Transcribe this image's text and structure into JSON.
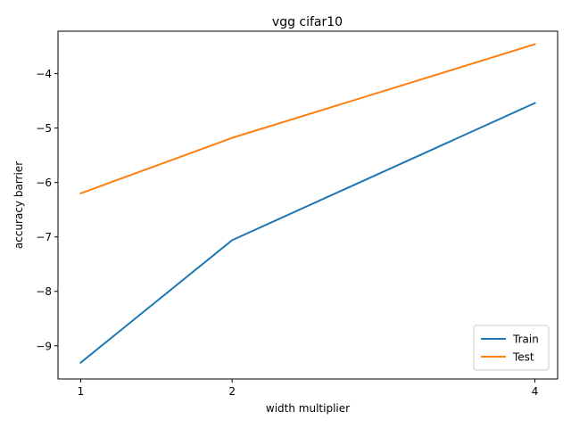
{
  "chart_data": {
    "type": "line",
    "title": "vgg cifar10",
    "xlabel": "width multiplier",
    "ylabel": "accuracy barrier",
    "x": [
      1,
      2,
      4
    ],
    "x_ticks": [
      "1",
      "2",
      "4"
    ],
    "y_ticks": [
      -9,
      -8,
      -7,
      -6,
      -5,
      -4
    ],
    "y_tick_labels": [
      "−9",
      "−8",
      "−7",
      "−6",
      "−5",
      "−4"
    ],
    "xlim": [
      0.85,
      4.15
    ],
    "ylim": [
      -9.61,
      -3.22
    ],
    "grid": false,
    "legend_position": "lower right",
    "series": [
      {
        "name": "Train",
        "color": "#1f77b4",
        "values": [
          -9.31,
          -7.06,
          -4.54
        ]
      },
      {
        "name": "Test",
        "color": "#ff7f0e",
        "values": [
          -6.2,
          -5.18,
          -3.46
        ]
      }
    ]
  }
}
